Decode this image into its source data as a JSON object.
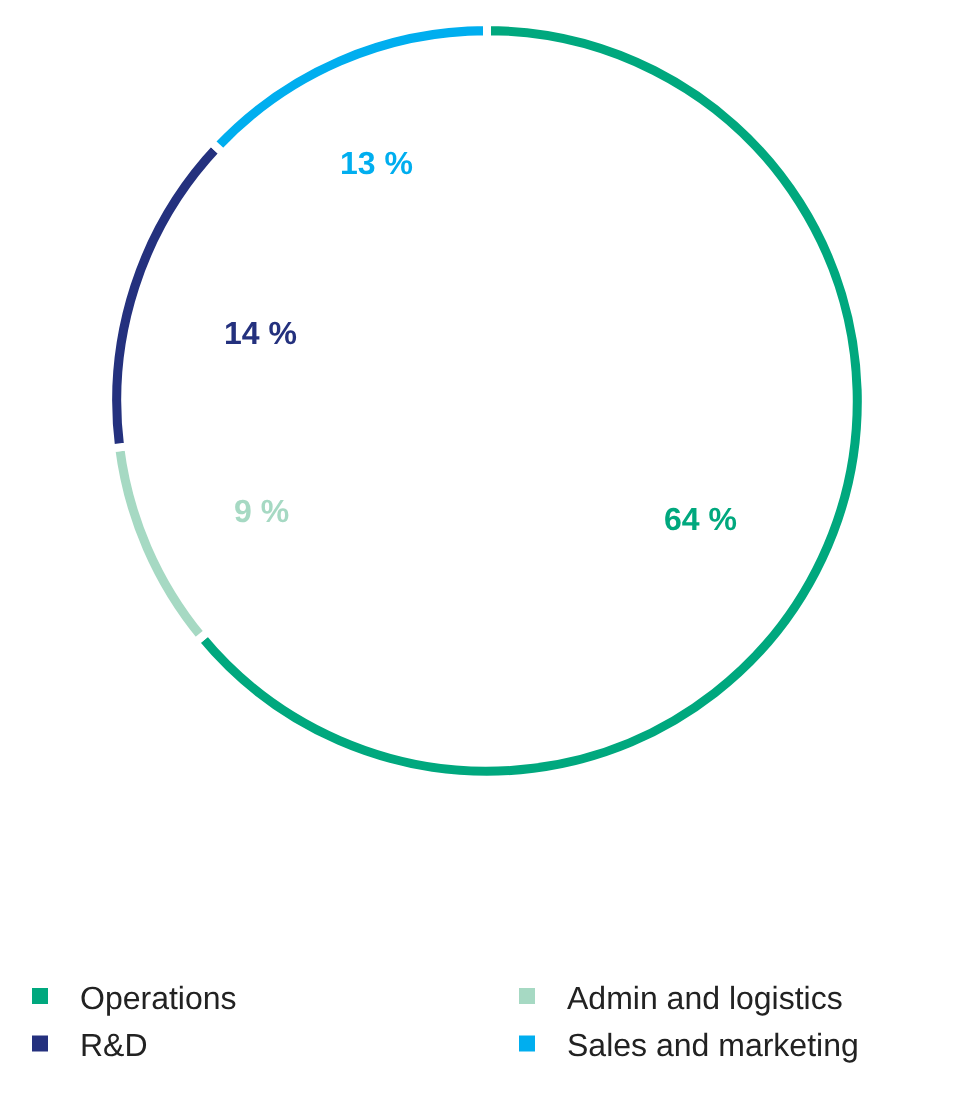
{
  "chart_data": {
    "type": "donut",
    "categories": [
      "Operations",
      "Admin and logistics",
      "R&D",
      "Sales and marketing"
    ],
    "values": [
      64,
      9,
      14,
      13
    ],
    "colors": [
      "#00a87e",
      "#a6d9c3",
      "#24317e",
      "#00aeef"
    ],
    "value_labels": [
      "64 %",
      "9 %",
      "14 %",
      "13 %"
    ],
    "legend": "bottom"
  }
}
